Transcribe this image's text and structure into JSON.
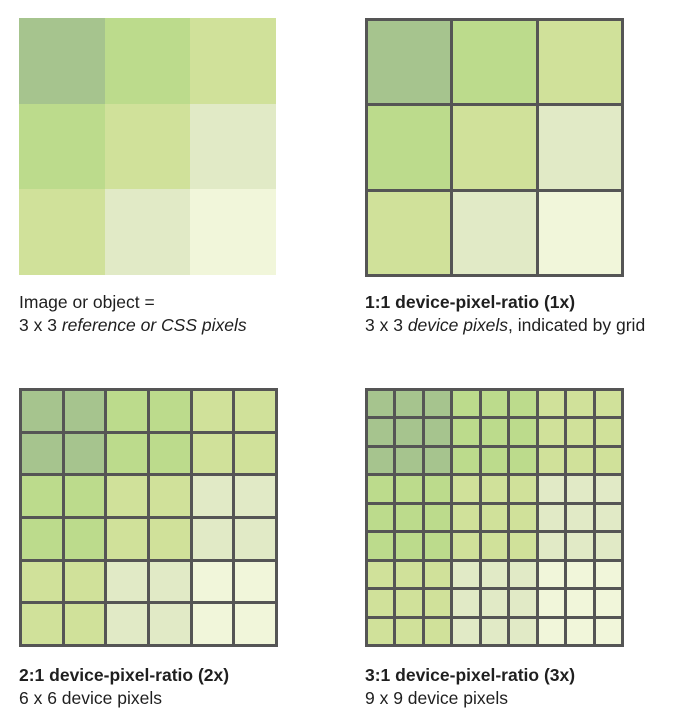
{
  "colors": {
    "grid_line": "#555555",
    "base_3x3": [
      [
        "#a6c48e",
        "#bcdb8c",
        "#d0e19a"
      ],
      [
        "#bcdb8c",
        "#d0e19a",
        "#e1eac6"
      ],
      [
        "#d0e19a",
        "#e1eac6",
        "#f1f6da"
      ]
    ]
  },
  "panels": [
    {
      "key": "reference",
      "divisions": 3,
      "bordered": false,
      "caption_line1_parts": [
        {
          "text": "Image or object =",
          "style": "normal"
        }
      ],
      "caption_line2_parts": [
        {
          "text": "3 x 3 ",
          "style": "normal"
        },
        {
          "text": "reference or CSS pixels",
          "style": "italic"
        }
      ]
    },
    {
      "key": "dpr1",
      "divisions": 3,
      "bordered": true,
      "caption_line1_parts": [
        {
          "text": "1:1 device-pixel-ratio (1x)",
          "style": "bold"
        }
      ],
      "caption_line2_parts": [
        {
          "text": "3 x 3 ",
          "style": "normal"
        },
        {
          "text": "device pixels",
          "style": "italic"
        },
        {
          "text": ", indicated by grid",
          "style": "normal"
        }
      ]
    },
    {
      "key": "dpr2",
      "divisions": 6,
      "bordered": true,
      "caption_line1_parts": [
        {
          "text": "2:1 device-pixel-ratio (2x)",
          "style": "bold"
        }
      ],
      "caption_line2_parts": [
        {
          "text": "6 x 6 device pixels",
          "style": "normal"
        }
      ]
    },
    {
      "key": "dpr3",
      "divisions": 9,
      "bordered": true,
      "caption_line1_parts": [
        {
          "text": "3:1 device-pixel-ratio (3x)",
          "style": "bold"
        }
      ],
      "caption_line2_parts": [
        {
          "text": "9 x 9 device pixels",
          "style": "normal"
        }
      ]
    }
  ]
}
